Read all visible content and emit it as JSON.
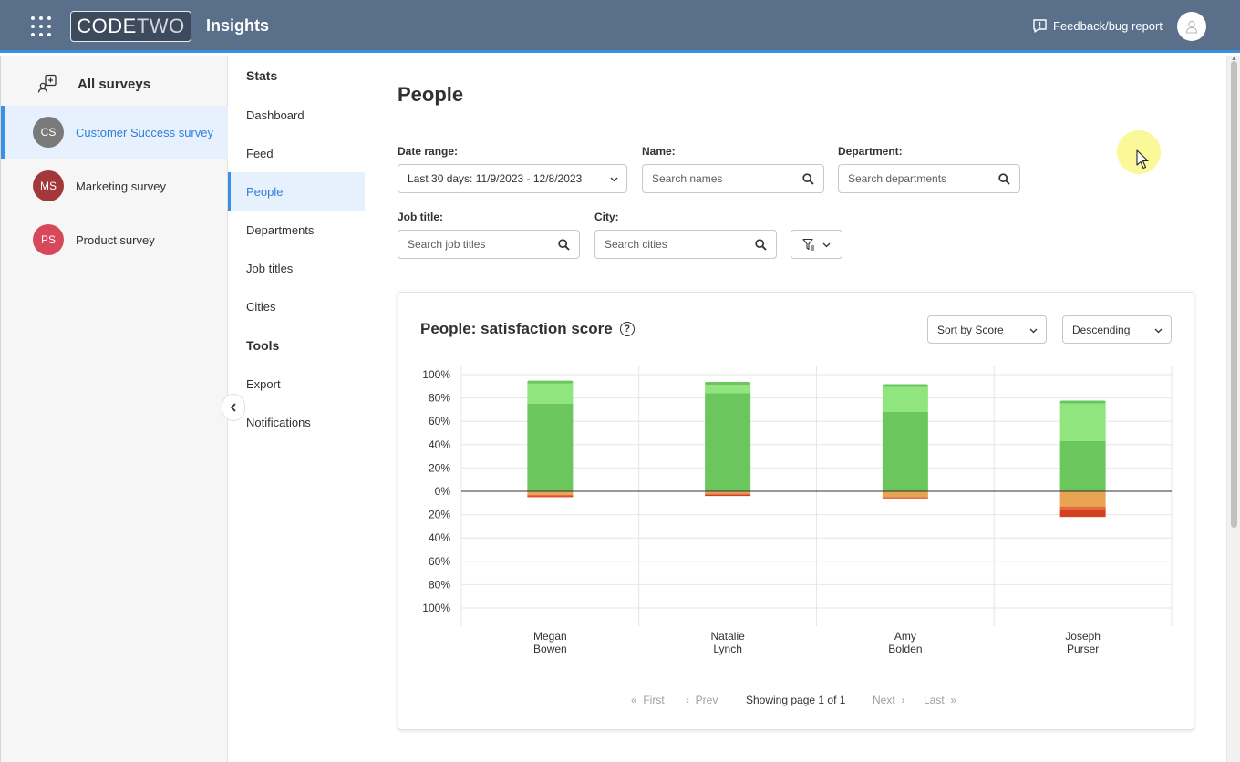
{
  "header": {
    "logo_code": "CODE",
    "logo_two": "TWO",
    "app_title": "Insights",
    "feedback_label": "Feedback/bug report"
  },
  "surveys": {
    "all_label": "All surveys",
    "items": [
      {
        "initials": "CS",
        "label": "Customer Success survey",
        "color": "#7a7a7a",
        "active": true
      },
      {
        "initials": "MS",
        "label": "Marketing survey",
        "color": "#a4373a",
        "active": false
      },
      {
        "initials": "PS",
        "label": "Product survey",
        "color": "#d6485a",
        "active": false
      }
    ]
  },
  "nav": {
    "stats_heading": "Stats",
    "stats_items": [
      "Dashboard",
      "Feed",
      "People",
      "Departments",
      "Job titles",
      "Cities"
    ],
    "active_item": "People",
    "tools_heading": "Tools",
    "tools_items": [
      "Export",
      "Notifications"
    ]
  },
  "page": {
    "title": "People",
    "filters": {
      "date_range_label": "Date range:",
      "date_range_value": "Last 30 days: 11/9/2023 - 12/8/2023",
      "name_label": "Name:",
      "name_placeholder": "Search names",
      "department_label": "Department:",
      "department_placeholder": "Search departments",
      "job_title_label": "Job title:",
      "job_title_placeholder": "Search job titles",
      "city_label": "City:",
      "city_placeholder": "Search cities"
    }
  },
  "card": {
    "title": "People: satisfaction score",
    "sort_value": "Sort by Score",
    "order_value": "Descending",
    "pager": {
      "first": "First",
      "prev": "Prev",
      "showing": "Showing page 1 of 1",
      "next": "Next",
      "last": "Last"
    }
  },
  "chart_data": {
    "type": "bar",
    "stacked": true,
    "categories": [
      [
        "Megan",
        "Bowen"
      ],
      [
        "Natalie",
        "Lynch"
      ],
      [
        "Amy",
        "Bolden"
      ],
      [
        "Joseph",
        "Purser"
      ]
    ],
    "y_tick_labels": [
      "100%",
      "80%",
      "60%",
      "40%",
      "20%",
      "0%",
      "20%",
      "40%",
      "60%",
      "80%",
      "100%"
    ],
    "ylim": [
      -100,
      100
    ],
    "grid": true,
    "series": [
      {
        "color": "#6ac65d",
        "values": [
          75,
          84,
          68,
          43
        ]
      },
      {
        "color": "#90e57f",
        "values": [
          19,
          9,
          23,
          34
        ]
      },
      {
        "color": "#e8a452",
        "values": [
          -3,
          -2,
          -5,
          -13
        ]
      },
      {
        "color": "#e06c3c",
        "values": [
          -1,
          -1,
          -1,
          -3
        ]
      },
      {
        "color": "#d23f21",
        "values": [
          -1,
          -1,
          -1,
          -6
        ]
      }
    ]
  }
}
